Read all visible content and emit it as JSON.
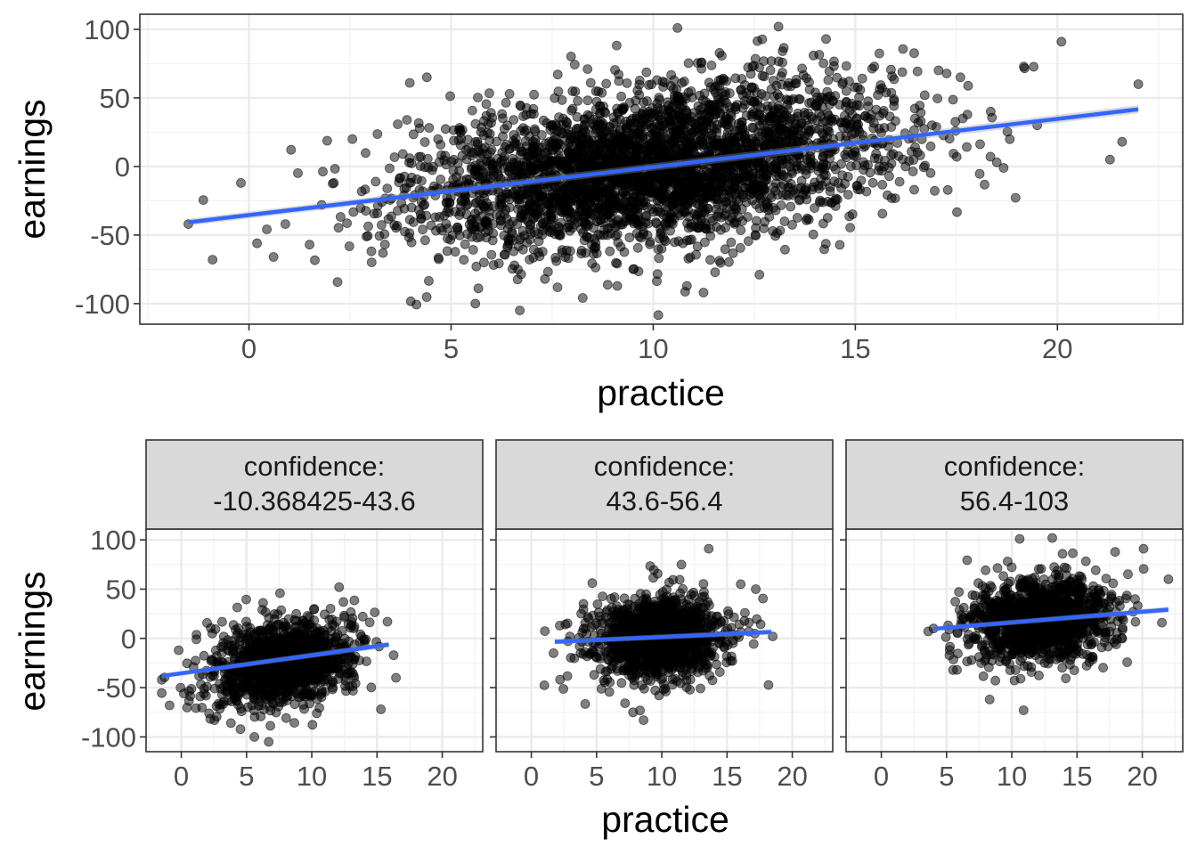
{
  "chart_data": [
    {
      "type": "scatter",
      "title": "",
      "xlabel": "practice",
      "ylabel": "earnings",
      "xlim": [
        -2.7,
        23.1
      ],
      "ylim": [
        -115,
        111
      ],
      "xticks": [
        0,
        5,
        10,
        15,
        20
      ],
      "yticks": [
        100,
        50,
        0,
        -50,
        -100
      ],
      "xtick_labels": [
        "0",
        "5",
        "10",
        "15",
        "20"
      ],
      "ytick_labels": [
        "100",
        "50",
        "0",
        "-50",
        "-100"
      ],
      "grid": true,
      "point_color": "#000000",
      "point_alpha": 0.5,
      "cloud": {
        "n": 3400,
        "x_mean": 10,
        "x_sd": 3.0,
        "y_mean": 0,
        "y_sd": 28,
        "slope": 3.5
      },
      "outliers": [
        [
          -1.5,
          -42
        ],
        [
          -0.9,
          -68
        ],
        [
          -0.2,
          -12
        ],
        [
          0.2,
          -56
        ],
        [
          0.9,
          -42
        ],
        [
          1.5,
          -57
        ],
        [
          1.8,
          -28
        ],
        [
          2.1,
          -12
        ],
        [
          4.4,
          65
        ],
        [
          5.6,
          -100
        ],
        [
          6.7,
          -105
        ],
        [
          10.6,
          101
        ],
        [
          13.1,
          102
        ],
        [
          17.6,
          65
        ],
        [
          20.1,
          91
        ],
        [
          21.6,
          18
        ],
        [
          22.0,
          60
        ],
        [
          21.3,
          5
        ],
        [
          19.5,
          30
        ],
        [
          18.5,
          3
        ]
      ],
      "trend": {
        "x": [
          -1.5,
          22
        ],
        "y": [
          -40.7,
          41.7
        ]
      },
      "trend_color": "#3366ff"
    },
    {
      "type": "scatter",
      "facet_label": "confidence:\n-10.368425-43.6",
      "xlabel": "",
      "ylabel": "earnings",
      "xlim": [
        -2.7,
        23.1
      ],
      "ylim": [
        -115,
        111
      ],
      "xticks": [
        0,
        5,
        10,
        15,
        20
      ],
      "yticks": [
        100,
        50,
        0,
        -50,
        -100
      ],
      "xtick_labels": [
        "0",
        "5",
        "10",
        "15",
        "20"
      ],
      "ytick_labels": [
        "100",
        "50",
        "0",
        "-50",
        "-100"
      ],
      "grid": true,
      "cloud": {
        "n": 1200,
        "x_mean": 7.8,
        "x_sd": 2.7,
        "y_mean": -25,
        "y_sd": 22,
        "slope": 1.8
      },
      "outliers": [
        [
          -1.5,
          -42
        ],
        [
          -0.9,
          -68
        ],
        [
          -0.2,
          -12
        ],
        [
          0.2,
          -56
        ],
        [
          5.6,
          -100
        ],
        [
          6.7,
          -105
        ],
        [
          12.1,
          52
        ],
        [
          15.8,
          17
        ],
        [
          15.3,
          -72
        ]
      ],
      "trend": {
        "x": [
          -1.5,
          15.9
        ],
        "y": [
          -38.2,
          -6.3
        ]
      },
      "trend_color": "#3366ff"
    },
    {
      "type": "scatter",
      "facet_label": "confidence:\n43.6-56.4",
      "xlabel": "practice",
      "ylabel": "",
      "xlim": [
        -2.7,
        23.1
      ],
      "ylim": [
        -115,
        111
      ],
      "xticks": [
        0,
        5,
        10,
        15,
        20
      ],
      "xtick_labels": [
        "0",
        "5",
        "10",
        "15",
        "20"
      ],
      "grid": true,
      "cloud": {
        "n": 1200,
        "x_mean": 9.8,
        "x_sd": 2.6,
        "y_mean": 0,
        "y_sd": 22,
        "slope": 0.6
      },
      "outliers": [
        [
          1.7,
          -15
        ],
        [
          2.2,
          -42
        ],
        [
          7.8,
          -75
        ],
        [
          8.6,
          -83
        ],
        [
          13.6,
          91
        ],
        [
          18.5,
          2
        ],
        [
          17.2,
          50
        ]
      ],
      "trend": {
        "x": [
          1.8,
          18.4
        ],
        "y": [
          -3.5,
          6.5
        ]
      },
      "trend_color": "#3366ff"
    },
    {
      "type": "scatter",
      "facet_label": "confidence:\n56.4-103",
      "xlabel": "",
      "ylabel": "",
      "xlim": [
        -2.7,
        23.1
      ],
      "ylim": [
        -115,
        111
      ],
      "xticks": [
        0,
        5,
        10,
        15,
        20
      ],
      "xtick_labels": [
        "0",
        "5",
        "10",
        "15",
        "20"
      ],
      "grid": true,
      "cloud": {
        "n": 1200,
        "x_mean": 12.2,
        "x_sd": 2.7,
        "y_mean": 20,
        "y_sd": 22,
        "slope": 1.2
      },
      "outliers": [
        [
          4.0,
          10
        ],
        [
          5.8,
          -32
        ],
        [
          8.3,
          -62
        ],
        [
          10.6,
          101
        ],
        [
          13.1,
          102
        ],
        [
          20.1,
          91
        ],
        [
          21.5,
          16
        ],
        [
          22.0,
          60
        ],
        [
          19.3,
          27
        ],
        [
          10.9,
          -73
        ]
      ],
      "trend": {
        "x": [
          4.0,
          22.0
        ],
        "y": [
          9.7,
          29.2
        ]
      },
      "trend_color": "#3366ff"
    }
  ]
}
